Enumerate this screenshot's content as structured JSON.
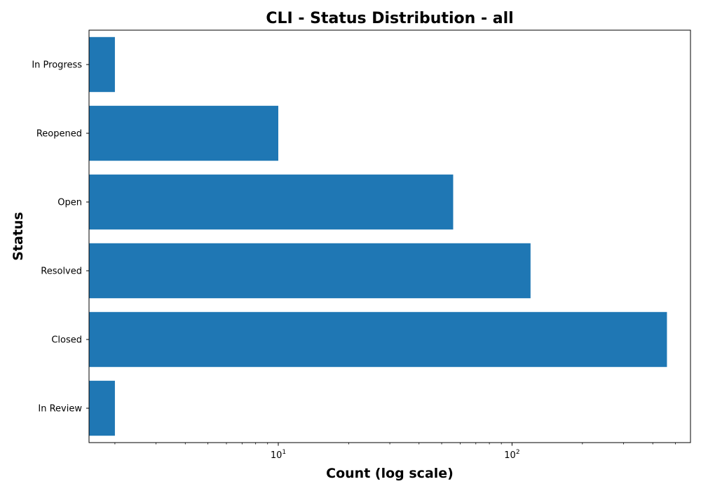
{
  "chart_data": {
    "type": "bar",
    "orientation": "horizontal",
    "title": "CLI - Status Distribution - all",
    "xlabel": "Count (log scale)",
    "ylabel": "Status",
    "xscale": "log",
    "xlim": [
      1.55,
      580
    ],
    "x_major_ticks": [
      10,
      100
    ],
    "x_minor_ticks": [
      2,
      3,
      4,
      5,
      6,
      7,
      8,
      9,
      20,
      30,
      40,
      50,
      60,
      70,
      80,
      90,
      200,
      300,
      400,
      500
    ],
    "categories": [
      "In Progress",
      "Reopened",
      "Open",
      "Resolved",
      "Closed",
      "In Review"
    ],
    "values": [
      2,
      10,
      56,
      120,
      460,
      2
    ],
    "bar_color": "#1f77b4",
    "grid": false,
    "legend": "none"
  }
}
